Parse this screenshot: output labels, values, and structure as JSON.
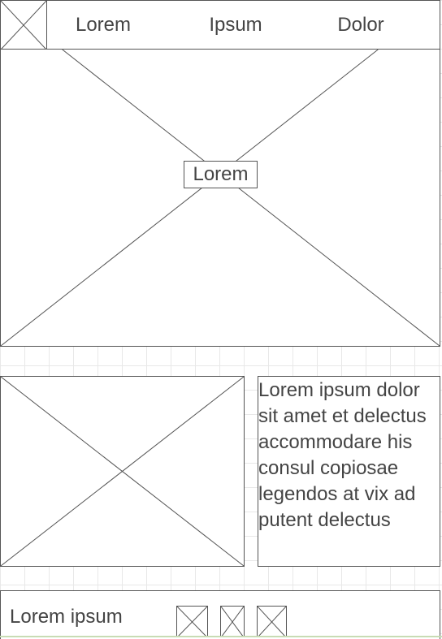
{
  "nav": {
    "items": [
      "Lorem",
      "Ipsum",
      "Dolor"
    ]
  },
  "hero": {
    "caption": "Lorem"
  },
  "content": {
    "text": "Lorem ipsum dolor sit amet et delectus accommodare his consul copiosae legendos at vix ad putent delectus"
  },
  "footer": {
    "label": "Lorem ipsum"
  }
}
